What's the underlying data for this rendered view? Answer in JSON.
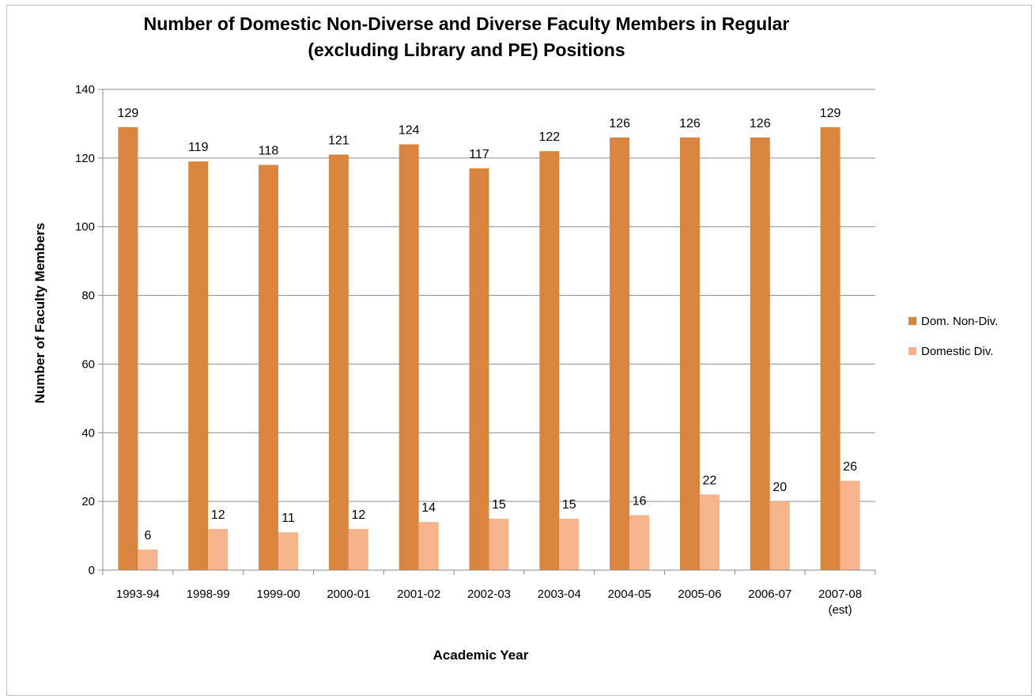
{
  "chart_data": {
    "type": "bar",
    "title_line1": "Number of Domestic Non-Diverse and Diverse Faculty Members in Regular",
    "title_line2": "(excluding Library and PE) Positions",
    "xlabel": "Academic Year",
    "ylabel": "Number of Faculty Members",
    "ylim": [
      0,
      140
    ],
    "yticks": [
      0,
      20,
      40,
      60,
      80,
      100,
      120,
      140
    ],
    "grid": true,
    "legend_position": "right",
    "categories": [
      [
        "1993-94"
      ],
      [
        "1998-99"
      ],
      [
        "1999-00"
      ],
      [
        "2000-01"
      ],
      [
        "2001-02"
      ],
      [
        "2002-03"
      ],
      [
        "2003-04"
      ],
      [
        "2004-05"
      ],
      [
        "2005-06"
      ],
      [
        "2006-07"
      ],
      [
        "2007-08",
        "(est)"
      ]
    ],
    "series": [
      {
        "name": "Dom. Non-Div.",
        "color": "#d9853f",
        "values": [
          129,
          119,
          118,
          121,
          124,
          117,
          122,
          126,
          126,
          126,
          129
        ]
      },
      {
        "name": "Domestic Div.",
        "color": "#f6b48c",
        "values": [
          6,
          12,
          11,
          12,
          14,
          15,
          15,
          16,
          22,
          20,
          26
        ]
      }
    ]
  }
}
